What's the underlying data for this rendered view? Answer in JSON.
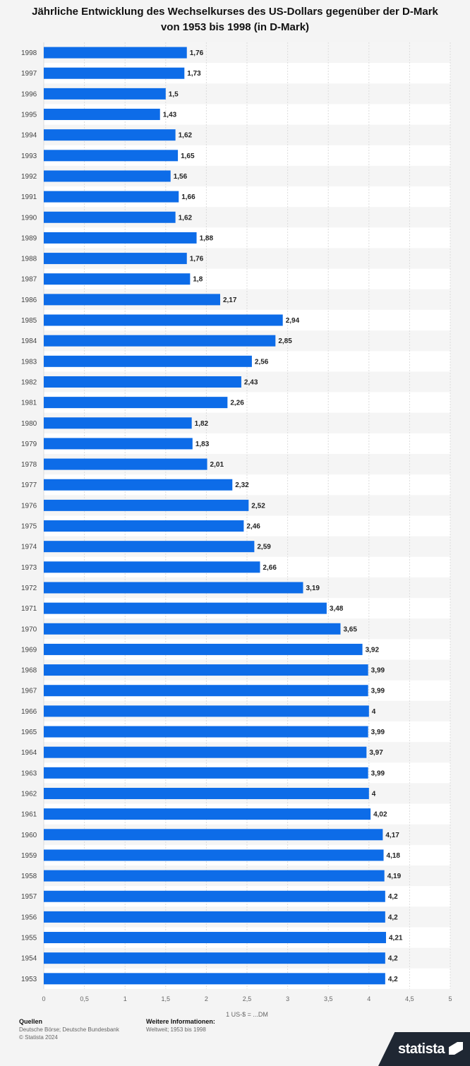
{
  "title": {
    "line1": "Jährliche Entwicklung des Wechselkurses des US-Dollars gegenüber der D-Mark",
    "line2": "von 1953 bis 1998 (in D-Mark)"
  },
  "chart_data": {
    "type": "bar",
    "orientation": "horizontal",
    "categories": [
      "1998",
      "1997",
      "1996",
      "1995",
      "1994",
      "1993",
      "1992",
      "1991",
      "1990",
      "1989",
      "1988",
      "1987",
      "1986",
      "1985",
      "1984",
      "1983",
      "1982",
      "1981",
      "1980",
      "1979",
      "1978",
      "1977",
      "1976",
      "1975",
      "1974",
      "1973",
      "1972",
      "1971",
      "1970",
      "1969",
      "1968",
      "1967",
      "1966",
      "1965",
      "1964",
      "1963",
      "1962",
      "1961",
      "1960",
      "1959",
      "1958",
      "1957",
      "1956",
      "1955",
      "1954",
      "1953"
    ],
    "values": [
      1.76,
      1.73,
      1.5,
      1.43,
      1.62,
      1.65,
      1.56,
      1.66,
      1.62,
      1.88,
      1.76,
      1.8,
      2.17,
      2.94,
      2.85,
      2.56,
      2.43,
      2.26,
      1.82,
      1.83,
      2.01,
      2.32,
      2.52,
      2.46,
      2.59,
      2.66,
      3.19,
      3.48,
      3.65,
      3.92,
      3.99,
      3.99,
      4,
      3.99,
      3.97,
      3.99,
      4,
      4.02,
      4.17,
      4.18,
      4.19,
      4.2,
      4.2,
      4.21,
      4.2,
      4.2
    ],
    "value_labels": [
      "1,76",
      "1,73",
      "1,5",
      "1,43",
      "1,62",
      "1,65",
      "1,56",
      "1,66",
      "1,62",
      "1,88",
      "1,76",
      "1,8",
      "2,17",
      "2,94",
      "2,85",
      "2,56",
      "2,43",
      "2,26",
      "1,82",
      "1,83",
      "2,01",
      "2,32",
      "2,52",
      "2,46",
      "2,59",
      "2,66",
      "3,19",
      "3,48",
      "3,65",
      "3,92",
      "3,99",
      "3,99",
      "4",
      "3,99",
      "3,97",
      "3,99",
      "4",
      "4,02",
      "4,17",
      "4,18",
      "4,19",
      "4,2",
      "4,2",
      "4,21",
      "4,2",
      "4,2"
    ],
    "xlim": [
      0,
      5
    ],
    "x_ticks": [
      0,
      0.5,
      1,
      1.5,
      2,
      2.5,
      3,
      3.5,
      4,
      4.5,
      5
    ],
    "x_tick_labels": [
      "0",
      "0,5",
      "1",
      "1,5",
      "2",
      "2,5",
      "3",
      "3,5",
      "4",
      "4,5",
      "5"
    ],
    "xlabel": "1 US-$ = ...DM",
    "bar_color": "#0d6ce8",
    "grid": true
  },
  "footer": {
    "sources_header": "Quellen",
    "sources_text": "Deutsche Börse; Deutsche Bundesbank",
    "copyright": "© Statista 2024",
    "info_header": "Weitere Informationen:",
    "info_text": "Weltweit; 1953 bis 1998"
  },
  "logo": {
    "text": "statista"
  }
}
